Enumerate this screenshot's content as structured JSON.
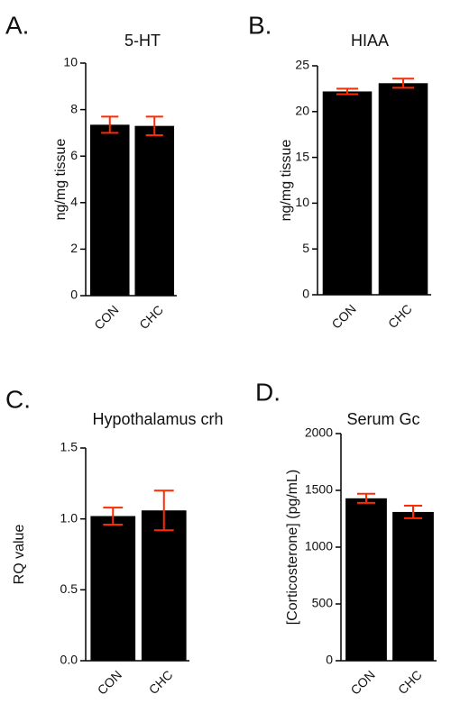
{
  "chart_data": [
    {
      "type": "bar",
      "panel": "A.",
      "title": "5-HT",
      "ylabel": "ng/mg tissue",
      "categories": [
        "CON",
        "CHC"
      ],
      "values": [
        7.35,
        7.3
      ],
      "errors": [
        0.35,
        0.4
      ],
      "color": "#000000",
      "error_color": "#ff2a00",
      "ylim": [
        0,
        10
      ],
      "yticks": [
        0,
        2,
        4,
        6,
        8,
        10
      ]
    },
    {
      "type": "bar",
      "panel": "B.",
      "title": "HIAA",
      "ylabel": "ng/mg tissue",
      "categories": [
        "CON",
        "CHC"
      ],
      "values": [
        22.2,
        23.1
      ],
      "errors": [
        0.3,
        0.5
      ],
      "color": "#000000",
      "error_color": "#ff2a00",
      "ylim": [
        0,
        25
      ],
      "yticks": [
        0,
        5,
        10,
        15,
        20,
        25
      ]
    },
    {
      "type": "bar",
      "panel": "C.",
      "title": "Hypothalamus crh",
      "ylabel": "RQ value",
      "categories": [
        "CON",
        "CHC"
      ],
      "values": [
        1.02,
        1.06
      ],
      "errors": [
        0.06,
        0.14
      ],
      "color": "#000000",
      "error_color": "#ff2a00",
      "ylim": [
        0,
        1.5
      ],
      "yticks": [
        {
          "value": 0,
          "label": "0.0"
        },
        {
          "value": 0.5,
          "label": "0.5"
        },
        {
          "value": 1,
          "label": "1.0"
        },
        {
          "value": 1.5,
          "label": "1.5"
        }
      ]
    },
    {
      "type": "bar",
      "panel": "D.",
      "title": "Serum Gc",
      "ylabel": "[Corticosterone] (pg/mL)",
      "categories": [
        "CON",
        "CHC"
      ],
      "values": [
        1430,
        1310
      ],
      "errors": [
        40,
        55
      ],
      "color": "#000000",
      "error_color": "#ff2a00",
      "ylim": [
        0,
        2000
      ],
      "yticks": [
        0,
        500,
        1000,
        1500,
        2000
      ]
    }
  ]
}
